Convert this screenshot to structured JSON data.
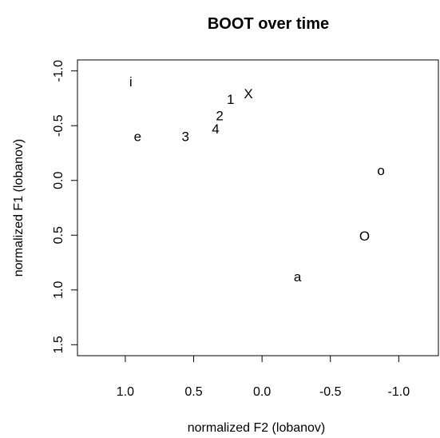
{
  "chart_data": {
    "type": "scatter",
    "title": "BOOT over time",
    "xlabel": "normalized F2 (lobanov)",
    "ylabel": "normalized F1 (lobanov)",
    "x_reversed": true,
    "y_reversed": true,
    "xlim": [
      1.35,
      -1.29
    ],
    "ylim": [
      -1.1,
      1.6
    ],
    "xticks": [
      1.0,
      0.5,
      0.0,
      -0.5,
      -1.0
    ],
    "xtick_labels": [
      "1.0",
      "0.5",
      "0.0",
      "-0.5",
      "-1.0"
    ],
    "yticks": [
      -1.0,
      -0.5,
      0.0,
      0.5,
      1.0,
      1.5
    ],
    "ytick_labels": [
      "-1.0",
      "-0.5",
      "0.0",
      "0.5",
      "1.0",
      "1.5"
    ],
    "grid": false,
    "legend": "none",
    "points": [
      {
        "label": "i",
        "x": 0.96,
        "y": -0.9
      },
      {
        "label": "X",
        "x": 0.1,
        "y": -0.79
      },
      {
        "label": "1",
        "x": 0.23,
        "y": -0.74
      },
      {
        "label": "2",
        "x": 0.31,
        "y": -0.59
      },
      {
        "label": "4",
        "x": 0.34,
        "y": -0.47
      },
      {
        "label": "3",
        "x": 0.56,
        "y": -0.4
      },
      {
        "label": "e",
        "x": 0.91,
        "y": -0.4
      },
      {
        "label": "o",
        "x": -0.87,
        "y": -0.09
      },
      {
        "label": "O",
        "x": -0.75,
        "y": 0.51
      },
      {
        "label": "a",
        "x": -0.26,
        "y": 0.88
      }
    ]
  }
}
